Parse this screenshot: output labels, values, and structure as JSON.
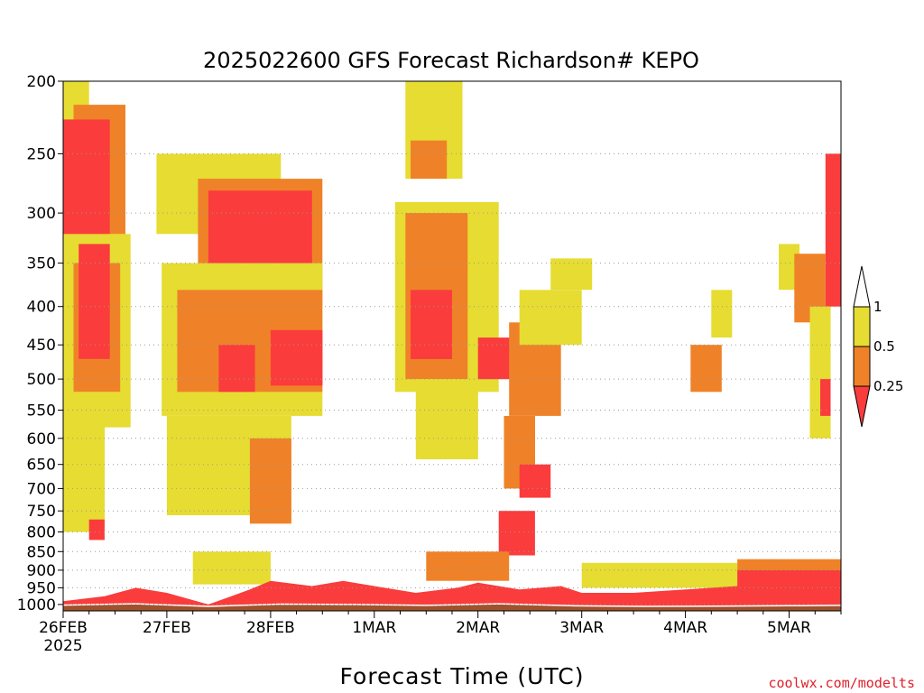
{
  "chart_data": {
    "type": "heatmap",
    "title": "2025022600 GFS Forecast Richardson# KEPO",
    "xlabel": "Forecast Time (UTC)",
    "ylabel": "",
    "credit": "coolwx.com/modelts",
    "x_ticks": [
      "26FEB",
      "27FEB",
      "28FEB",
      "1MAR",
      "2MAR",
      "3MAR",
      "4MAR",
      "5MAR"
    ],
    "x_year_label": "2025",
    "x_range_days": [
      0,
      7.5
    ],
    "y_ticks": [
      "200",
      "250",
      "300",
      "350",
      "400",
      "450",
      "500",
      "550",
      "600",
      "650",
      "700",
      "750",
      "800",
      "850",
      "900",
      "950",
      "1000"
    ],
    "y_range_hpa": [
      200,
      1020
    ],
    "y_scale": "log",
    "grid": "dotted horizontal at each pressure tick",
    "legend_position": "right",
    "colorbar": {
      "labels": [
        "1",
        "0.5",
        "0.25"
      ],
      "bins": [
        {
          "range": "> 1",
          "color": "#ffffff"
        },
        {
          "range": "0.5 - 1",
          "color": "#e6dc32"
        },
        {
          "range": "0.25 - 0.5",
          "color": "#ef8228"
        },
        {
          "range": "< 0.25",
          "color": "#fa3c3c"
        }
      ]
    },
    "ground_color": "#a0522d",
    "regions": [
      {
        "t0": 0.0,
        "t1": 0.25,
        "p0": 200,
        "p1": 260,
        "level": "low"
      },
      {
        "t0": 0.1,
        "t1": 0.6,
        "p0": 215,
        "p1": 320,
        "level": "moderate"
      },
      {
        "t0": 0.0,
        "t1": 0.45,
        "p0": 225,
        "p1": 360,
        "level": "high"
      },
      {
        "t0": 0.0,
        "t1": 0.65,
        "p0": 320,
        "p1": 580,
        "level": "low"
      },
      {
        "t0": 0.1,
        "t1": 0.55,
        "p0": 350,
        "p1": 520,
        "level": "moderate"
      },
      {
        "t0": 0.15,
        "t1": 0.45,
        "p0": 330,
        "p1": 470,
        "level": "high"
      },
      {
        "t0": 0.0,
        "t1": 0.4,
        "p0": 560,
        "p1": 800,
        "level": "low"
      },
      {
        "t0": 0.25,
        "t1": 0.4,
        "p0": 770,
        "p1": 820,
        "level": "high"
      },
      {
        "t0": 0.9,
        "t1": 2.1,
        "p0": 250,
        "p1": 320,
        "level": "low"
      },
      {
        "t0": 1.3,
        "t1": 2.5,
        "p0": 270,
        "p1": 400,
        "level": "moderate"
      },
      {
        "t0": 1.4,
        "t1": 2.4,
        "p0": 280,
        "p1": 360,
        "level": "high"
      },
      {
        "t0": 0.95,
        "t1": 2.5,
        "p0": 350,
        "p1": 560,
        "level": "low"
      },
      {
        "t0": 1.1,
        "t1": 2.5,
        "p0": 380,
        "p1": 520,
        "level": "moderate"
      },
      {
        "t0": 2.0,
        "t1": 2.5,
        "p0": 430,
        "p1": 510,
        "level": "high"
      },
      {
        "t0": 1.5,
        "t1": 1.85,
        "p0": 450,
        "p1": 520,
        "level": "high"
      },
      {
        "t0": 1.0,
        "t1": 2.2,
        "p0": 560,
        "p1": 760,
        "level": "low"
      },
      {
        "t0": 1.8,
        "t1": 2.2,
        "p0": 600,
        "p1": 780,
        "level": "moderate"
      },
      {
        "t0": 1.25,
        "t1": 2.0,
        "p0": 850,
        "p1": 940,
        "level": "low"
      },
      {
        "t0": 3.3,
        "t1": 3.85,
        "p0": 200,
        "p1": 270,
        "level": "low"
      },
      {
        "t0": 3.35,
        "t1": 3.7,
        "p0": 240,
        "p1": 270,
        "level": "moderate"
      },
      {
        "t0": 3.2,
        "t1": 4.2,
        "p0": 290,
        "p1": 520,
        "level": "low"
      },
      {
        "t0": 3.3,
        "t1": 3.9,
        "p0": 300,
        "p1": 500,
        "level": "moderate"
      },
      {
        "t0": 3.35,
        "t1": 3.75,
        "p0": 380,
        "p1": 470,
        "level": "high"
      },
      {
        "t0": 3.4,
        "t1": 4.0,
        "p0": 500,
        "p1": 640,
        "level": "low"
      },
      {
        "t0": 4.0,
        "t1": 4.4,
        "p0": 440,
        "p1": 500,
        "level": "high"
      },
      {
        "t0": 4.3,
        "t1": 4.8,
        "p0": 420,
        "p1": 560,
        "level": "moderate"
      },
      {
        "t0": 4.25,
        "t1": 4.55,
        "p0": 560,
        "p1": 700,
        "level": "moderate"
      },
      {
        "t0": 4.4,
        "t1": 4.7,
        "p0": 650,
        "p1": 720,
        "level": "high"
      },
      {
        "t0": 4.7,
        "t1": 5.1,
        "p0": 345,
        "p1": 380,
        "level": "low"
      },
      {
        "t0": 4.4,
        "t1": 5.0,
        "p0": 380,
        "p1": 450,
        "level": "low"
      },
      {
        "t0": 4.2,
        "t1": 4.55,
        "p0": 750,
        "p1": 860,
        "level": "high"
      },
      {
        "t0": 3.5,
        "t1": 4.3,
        "p0": 850,
        "p1": 930,
        "level": "moderate"
      },
      {
        "t0": 6.25,
        "t1": 6.45,
        "p0": 380,
        "p1": 440,
        "level": "low"
      },
      {
        "t0": 6.05,
        "t1": 6.35,
        "p0": 450,
        "p1": 520,
        "level": "moderate"
      },
      {
        "t0": 6.9,
        "t1": 7.1,
        "p0": 330,
        "p1": 380,
        "level": "low"
      },
      {
        "t0": 7.05,
        "t1": 7.35,
        "p0": 340,
        "p1": 420,
        "level": "moderate"
      },
      {
        "t0": 7.35,
        "t1": 7.5,
        "p0": 250,
        "p1": 400,
        "level": "high"
      },
      {
        "t0": 7.2,
        "t1": 7.4,
        "p0": 400,
        "p1": 600,
        "level": "low"
      },
      {
        "t0": 7.3,
        "t1": 7.4,
        "p0": 500,
        "p1": 560,
        "level": "high"
      },
      {
        "t0": 6.5,
        "t1": 7.5,
        "p0": 870,
        "p1": 960,
        "level": "moderate"
      },
      {
        "t0": 6.5,
        "t1": 7.5,
        "p0": 900,
        "p1": 970,
        "level": "high"
      },
      {
        "t0": 5.0,
        "t1": 6.5,
        "p0": 880,
        "p1": 950,
        "level": "low"
      }
    ],
    "pbl": [
      {
        "t": 0.0,
        "p": 990
      },
      {
        "t": 0.4,
        "p": 975
      },
      {
        "t": 0.7,
        "p": 950
      },
      {
        "t": 1.0,
        "p": 965
      },
      {
        "t": 1.4,
        "p": 1000
      },
      {
        "t": 1.8,
        "p": 955
      },
      {
        "t": 2.0,
        "p": 930
      },
      {
        "t": 2.4,
        "p": 945
      },
      {
        "t": 2.7,
        "p": 930
      },
      {
        "t": 3.0,
        "p": 945
      },
      {
        "t": 3.4,
        "p": 965
      },
      {
        "t": 3.8,
        "p": 950
      },
      {
        "t": 4.0,
        "p": 935
      },
      {
        "t": 4.4,
        "p": 955
      },
      {
        "t": 4.8,
        "p": 945
      },
      {
        "t": 5.0,
        "p": 965
      },
      {
        "t": 5.5,
        "p": 965
      },
      {
        "t": 6.0,
        "p": 955
      },
      {
        "t": 6.5,
        "p": 945
      },
      {
        "t": 7.0,
        "p": 950
      },
      {
        "t": 7.5,
        "p": 960
      }
    ],
    "surface": [
      {
        "t": 0.0,
        "p": 1002
      },
      {
        "t": 0.7,
        "p": 998
      },
      {
        "t": 1.4,
        "p": 1006
      },
      {
        "t": 2.1,
        "p": 999
      },
      {
        "t": 2.8,
        "p": 1000
      },
      {
        "t": 3.5,
        "p": 1003
      },
      {
        "t": 4.2,
        "p": 998
      },
      {
        "t": 4.9,
        "p": 1004
      },
      {
        "t": 5.6,
        "p": 1006
      },
      {
        "t": 6.3,
        "p": 1005
      },
      {
        "t": 7.0,
        "p": 1004
      },
      {
        "t": 7.5,
        "p": 1003
      }
    ]
  }
}
